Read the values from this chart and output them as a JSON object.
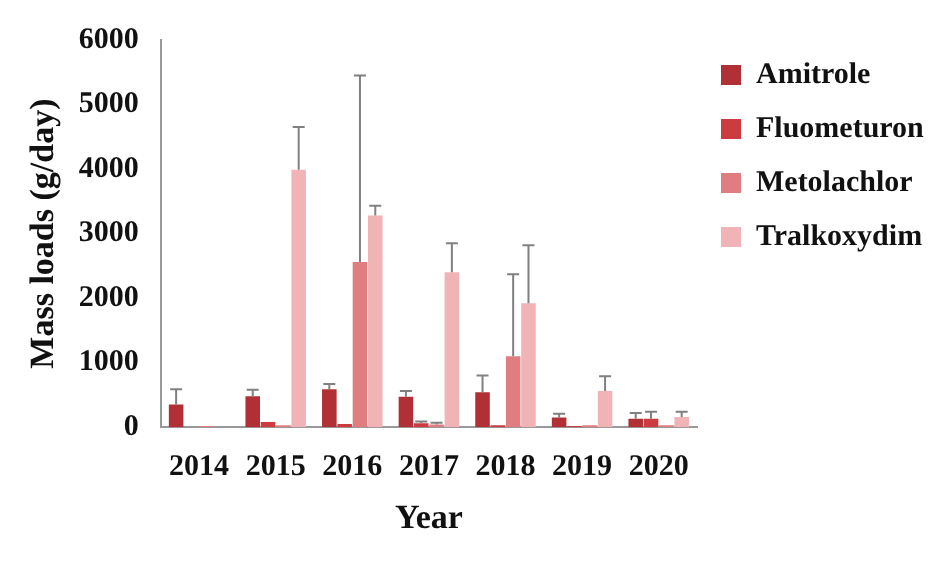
{
  "chart_data": {
    "type": "bar",
    "xlabel": "Year",
    "ylabel": "Mass loads (g/day)",
    "categories": [
      "2014",
      "2015",
      "2016",
      "2017",
      "2018",
      "2019",
      "2020"
    ],
    "series": [
      {
        "name": "Amitrole",
        "color": "#b03035",
        "values": [
          350,
          480,
          590,
          470,
          540,
          150,
          130
        ],
        "errors": [
          [
            350,
            590
          ],
          [
            480,
            580
          ],
          [
            590,
            670
          ],
          [
            470,
            560
          ],
          [
            540,
            800
          ],
          [
            150,
            210
          ],
          [
            130,
            220
          ]
        ]
      },
      {
        "name": "Fluometuron",
        "color": "#cc3b40",
        "values": [
          null,
          80,
          50,
          60,
          30,
          20,
          130
        ],
        "errors": [
          null,
          null,
          null,
          [
            60,
            90
          ],
          null,
          null,
          [
            130,
            240
          ]
        ]
      },
      {
        "name": "Metolachlor",
        "color": "#e07d80",
        "values": [
          20,
          30,
          2560,
          40,
          1100,
          30,
          30
        ],
        "errors": [
          null,
          null,
          [
            2560,
            5450
          ],
          [
            40,
            70
          ],
          [
            1100,
            2370
          ],
          null,
          null
        ]
      },
      {
        "name": "Tralkoxydim",
        "color": "#f0b4b6",
        "values": [
          null,
          3990,
          3280,
          2400,
          1920,
          560,
          160
        ],
        "errors": [
          null,
          [
            3990,
            4650
          ],
          [
            3280,
            3430
          ],
          [
            2400,
            2850
          ],
          [
            1920,
            2820
          ],
          [
            560,
            790
          ],
          [
            160,
            240
          ]
        ]
      }
    ],
    "ylim": [
      0,
      6000
    ],
    "yticks": [
      0,
      1000,
      2000,
      3000,
      4000,
      5000,
      6000
    ],
    "grid": false,
    "legend": "right"
  }
}
